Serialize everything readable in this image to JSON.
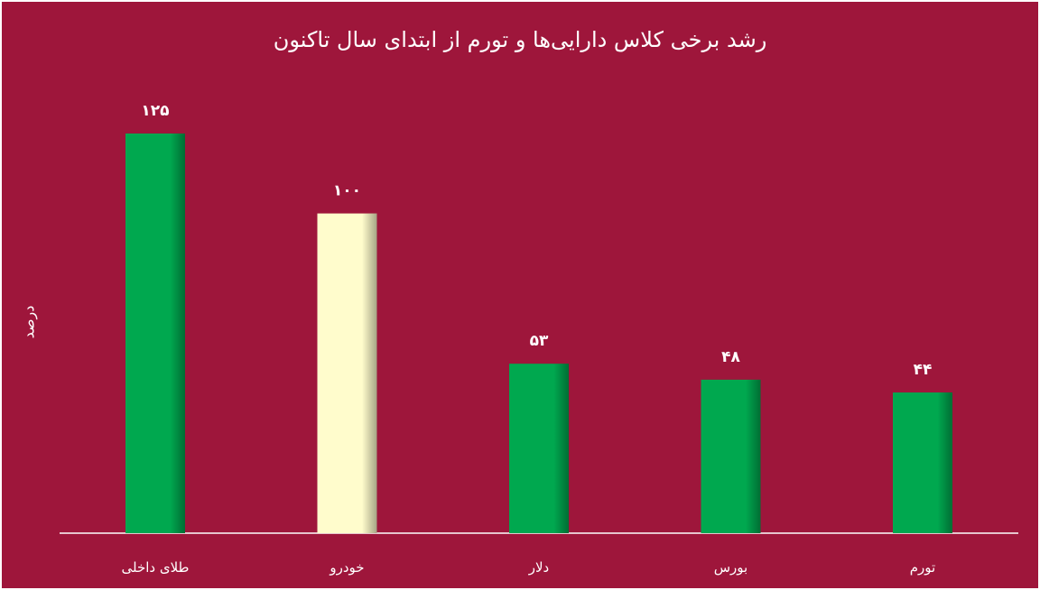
{
  "chart_data": {
    "type": "bar",
    "title": "رشد برخی کلاس دارایی‌ها و تورم از ابتدای سال تاکنون",
    "ylabel": "درصد",
    "xlabel": "",
    "categories": [
      "طلای داخلی",
      "خودرو",
      "دلار",
      "بورس",
      "تورم"
    ],
    "values": [
      125,
      100,
      53,
      48,
      44
    ],
    "data_labels": [
      "۱۲۵",
      "۱۰۰",
      "۵۳",
      "۴۸",
      "۴۴"
    ],
    "bar_colors": [
      "#00a84f",
      "#fffccc",
      "#00a84f",
      "#00a84f",
      "#00a84f"
    ],
    "background": "#9e163b",
    "ylim": [
      0,
      125
    ],
    "grid": false,
    "legend": "none"
  }
}
